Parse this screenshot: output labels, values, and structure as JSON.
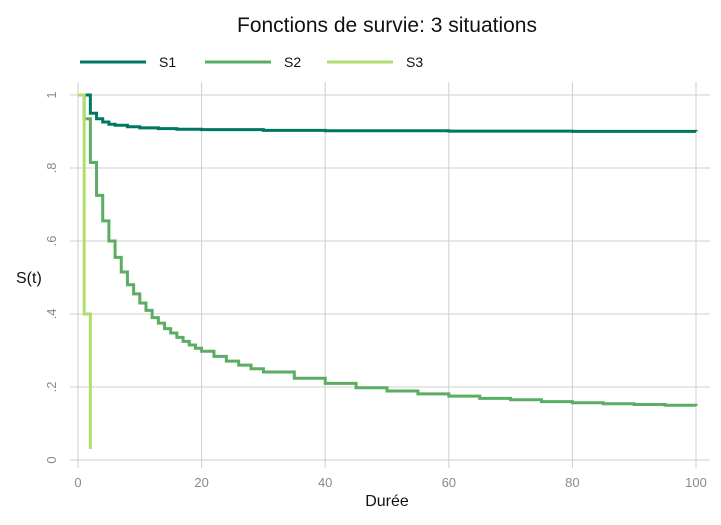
{
  "chart_data": {
    "type": "line",
    "title": "Fonctions de survie: 3 situations",
    "xlabel": "Durée",
    "ylabel": "S(t)",
    "xlim": [
      0,
      100
    ],
    "ylim": [
      0,
      1
    ],
    "x_ticks": [
      0,
      20,
      40,
      60,
      80,
      100
    ],
    "x_tick_labels": [
      "0",
      "20",
      "40",
      "60",
      "80",
      "100"
    ],
    "y_ticks": [
      0,
      0.2,
      0.4,
      0.6,
      0.8,
      1
    ],
    "y_tick_labels": [
      "0",
      ".2",
      ".4",
      ".6",
      ".8",
      "1"
    ],
    "grid": true,
    "legend_position": "top-left",
    "step": true,
    "series": [
      {
        "name": "S1",
        "color": "#00785f",
        "points": [
          [
            0,
            1
          ],
          [
            2,
            0.95
          ],
          [
            3,
            0.935
          ],
          [
            4,
            0.926
          ],
          [
            5,
            0.92
          ],
          [
            6,
            0.917
          ],
          [
            8,
            0.913
          ],
          [
            10,
            0.91
          ],
          [
            13,
            0.908
          ],
          [
            16,
            0.906
          ],
          [
            20,
            0.905
          ],
          [
            30,
            0.903
          ],
          [
            40,
            0.902
          ],
          [
            60,
            0.901
          ],
          [
            80,
            0.9005
          ],
          [
            100,
            0.9
          ]
        ]
      },
      {
        "name": "S2",
        "color": "#5aad63",
        "points": [
          [
            0,
            1
          ],
          [
            1,
            0.935
          ],
          [
            2,
            0.815
          ],
          [
            3,
            0.725
          ],
          [
            4,
            0.655
          ],
          [
            5,
            0.6
          ],
          [
            6,
            0.555
          ],
          [
            7,
            0.515
          ],
          [
            8,
            0.48
          ],
          [
            9,
            0.455
          ],
          [
            10,
            0.43
          ],
          [
            11,
            0.41
          ],
          [
            12,
            0.39
          ],
          [
            13,
            0.375
          ],
          [
            14,
            0.36
          ],
          [
            15,
            0.348
          ],
          [
            16,
            0.336
          ],
          [
            17,
            0.325
          ],
          [
            18,
            0.315
          ],
          [
            19,
            0.306
          ],
          [
            20,
            0.298
          ],
          [
            22,
            0.284
          ],
          [
            24,
            0.271
          ],
          [
            26,
            0.26
          ],
          [
            28,
            0.25
          ],
          [
            30,
            0.241
          ],
          [
            35,
            0.224
          ],
          [
            40,
            0.21
          ],
          [
            45,
            0.198
          ],
          [
            50,
            0.189
          ],
          [
            55,
            0.181
          ],
          [
            60,
            0.175
          ],
          [
            65,
            0.169
          ],
          [
            70,
            0.165
          ],
          [
            75,
            0.16
          ],
          [
            80,
            0.157
          ],
          [
            85,
            0.154
          ],
          [
            90,
            0.152
          ],
          [
            95,
            0.15
          ],
          [
            100,
            0.148
          ]
        ]
      },
      {
        "name": "S3",
        "color": "#b2dd6e",
        "points": [
          [
            0,
            1
          ],
          [
            1,
            0.93
          ],
          [
            1,
            0.4
          ],
          [
            2,
            0.4
          ],
          [
            2,
            0.03
          ]
        ]
      }
    ]
  }
}
